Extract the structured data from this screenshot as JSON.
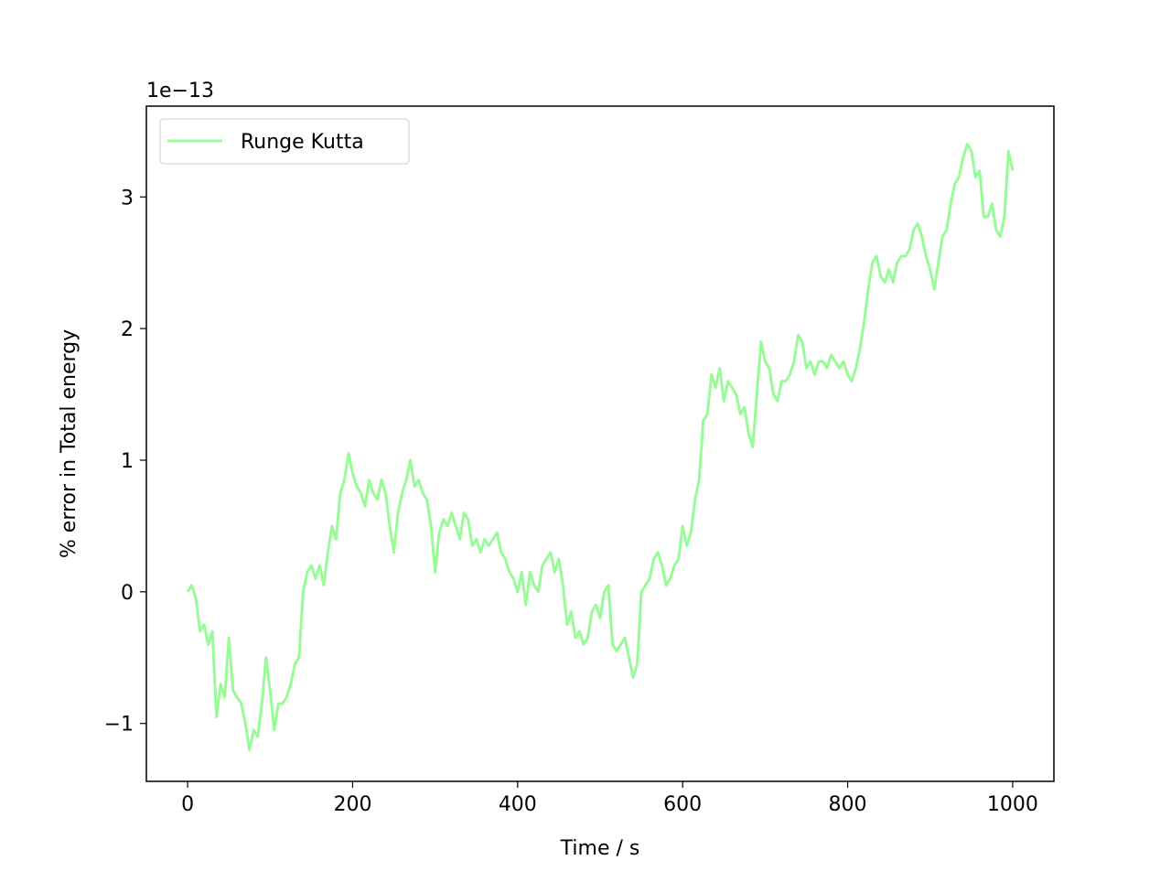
{
  "chart_data": {
    "type": "line",
    "xlabel": "Time / s",
    "ylabel": "% error in Total energy",
    "offset_text": "1e−13",
    "xlim": [
      -50,
      1050
    ],
    "ylim": [
      -1.44,
      3.69
    ],
    "xticks": [
      0,
      200,
      400,
      600,
      800,
      1000
    ],
    "yticks": [
      -1,
      0,
      1,
      2,
      3
    ],
    "grid": false,
    "legend": "upper left",
    "x": [
      0,
      5,
      10,
      15,
      20,
      25,
      30,
      35,
      40,
      45,
      50,
      55,
      60,
      65,
      70,
      75,
      80,
      85,
      90,
      95,
      100,
      105,
      110,
      115,
      120,
      125,
      130,
      135,
      140,
      145,
      150,
      155,
      160,
      165,
      170,
      175,
      180,
      185,
      190,
      195,
      200,
      205,
      210,
      215,
      220,
      225,
      230,
      235,
      240,
      245,
      250,
      255,
      260,
      265,
      270,
      275,
      280,
      285,
      290,
      295,
      300,
      305,
      310,
      315,
      320,
      325,
      330,
      335,
      340,
      345,
      350,
      355,
      360,
      365,
      370,
      375,
      380,
      385,
      390,
      395,
      400,
      405,
      410,
      415,
      420,
      425,
      430,
      435,
      440,
      445,
      450,
      455,
      460,
      465,
      470,
      475,
      480,
      485,
      490,
      495,
      500,
      505,
      510,
      515,
      520,
      525,
      530,
      535,
      540,
      545,
      550,
      555,
      560,
      565,
      570,
      575,
      580,
      585,
      590,
      595,
      600,
      605,
      610,
      615,
      620,
      625,
      630,
      635,
      640,
      645,
      650,
      655,
      660,
      665,
      670,
      675,
      680,
      685,
      690,
      695,
      700,
      705,
      710,
      715,
      720,
      725,
      730,
      735,
      740,
      745,
      750,
      755,
      760,
      765,
      770,
      775,
      780,
      785,
      790,
      795,
      800,
      805,
      810,
      815,
      820,
      825,
      830,
      835,
      840,
      845,
      850,
      855,
      860,
      865,
      870,
      875,
      880,
      885,
      890,
      895,
      900,
      905,
      910,
      915,
      920,
      925,
      930,
      935,
      940,
      945,
      950,
      955,
      960,
      965,
      970,
      975,
      980,
      985,
      990,
      995,
      1000
    ],
    "series": [
      {
        "name": "Runge Kutta",
        "color": "#98fb98",
        "values": [
          0,
          0.05,
          -0.05,
          -0.3,
          -0.25,
          -0.4,
          -0.3,
          -0.95,
          -0.7,
          -0.8,
          -0.35,
          -0.75,
          -0.8,
          -0.85,
          -1.0,
          -1.2,
          -1.05,
          -1.1,
          -0.85,
          -0.5,
          -0.75,
          -1.05,
          -0.85,
          -0.85,
          -0.8,
          -0.7,
          -0.55,
          -0.5,
          0.0,
          0.15,
          0.2,
          0.1,
          0.2,
          0.05,
          0.3,
          0.5,
          0.4,
          0.75,
          0.85,
          1.05,
          0.9,
          0.8,
          0.75,
          0.65,
          0.85,
          0.75,
          0.7,
          0.85,
          0.75,
          0.5,
          0.3,
          0.6,
          0.75,
          0.85,
          1.0,
          0.8,
          0.85,
          0.75,
          0.7,
          0.5,
          0.15,
          0.45,
          0.55,
          0.5,
          0.6,
          0.5,
          0.4,
          0.6,
          0.55,
          0.35,
          0.4,
          0.3,
          0.4,
          0.35,
          0.4,
          0.45,
          0.3,
          0.25,
          0.15,
          0.1,
          0.0,
          0.15,
          -0.1,
          0.15,
          0.05,
          0.0,
          0.2,
          0.25,
          0.3,
          0.15,
          0.25,
          0.05,
          -0.25,
          -0.15,
          -0.35,
          -0.3,
          -0.4,
          -0.35,
          -0.15,
          -0.1,
          -0.2,
          0.0,
          0.05,
          -0.4,
          -0.45,
          -0.4,
          -0.35,
          -0.5,
          -0.65,
          -0.55,
          0.0,
          0.05,
          0.1,
          0.25,
          0.3,
          0.2,
          0.05,
          0.1,
          0.2,
          0.25,
          0.5,
          0.35,
          0.45,
          0.7,
          0.85,
          1.3,
          1.35,
          1.65,
          1.55,
          1.7,
          1.45,
          1.6,
          1.55,
          1.5,
          1.35,
          1.4,
          1.2,
          1.1,
          1.5,
          1.9,
          1.75,
          1.7,
          1.5,
          1.45,
          1.6,
          1.6,
          1.65,
          1.75,
          1.95,
          1.9,
          1.7,
          1.75,
          1.65,
          1.75,
          1.75,
          1.7,
          1.8,
          1.75,
          1.7,
          1.75,
          1.65,
          1.6,
          1.7,
          1.85,
          2.05,
          2.3,
          2.5,
          2.55,
          2.4,
          2.35,
          2.45,
          2.35,
          2.5,
          2.55,
          2.55,
          2.6,
          2.75,
          2.8,
          2.7,
          2.55,
          2.45,
          2.3,
          2.5,
          2.7,
          2.75,
          2.95,
          3.1,
          3.15,
          3.3,
          3.4,
          3.35,
          3.15,
          3.2,
          2.85,
          2.85,
          2.95,
          2.75,
          2.7,
          2.85,
          3.35,
          3.2
        ]
      }
    ]
  }
}
